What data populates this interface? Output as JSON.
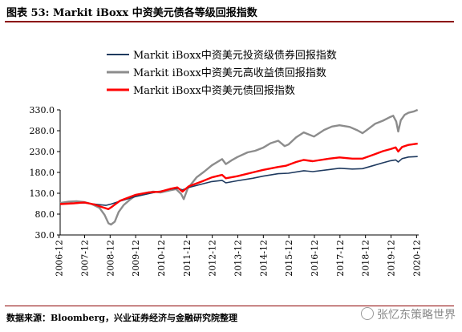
{
  "figure": {
    "caption": "图表 53:  Markit iBoxx 中资美元债各等级回报指数",
    "source": "数据来源：Bloomberg，兴业证券经济与金融研究院整理",
    "watermark": "张忆东策略世界"
  },
  "chart_data": {
    "type": "line",
    "title": "",
    "xlabel": "",
    "ylabel": "",
    "ylim": [
      30,
      330
    ],
    "yticks": [
      "330.0",
      "280.0",
      "230.0",
      "180.0",
      "130.0",
      "80.0",
      "30.0"
    ],
    "xlim": [
      2006.96,
      2021.0
    ],
    "xticks": [
      "2006-12",
      "2007-12",
      "2008-12",
      "2009-12",
      "2010-12",
      "2011-12",
      "2012-12",
      "2013-12",
      "2014-12",
      "2015-12",
      "2016-12",
      "2017-12",
      "2018-12",
      "2019-12",
      "2020-12"
    ],
    "grid": false,
    "legend_position": "top-center",
    "series": [
      {
        "name": "Markit iBoxx中资美元投资级债券回报指数",
        "color": "#1f3a5f",
        "x": [
          2006.96,
          2007.5,
          2007.9,
          2008.3,
          2008.75,
          2008.95,
          2009.3,
          2009.9,
          2010.5,
          2010.9,
          2011.3,
          2011.55,
          2011.75,
          2012.0,
          2012.5,
          2012.9,
          2013.3,
          2013.45,
          2013.9,
          2014.5,
          2014.9,
          2015.5,
          2015.9,
          2016.5,
          2016.85,
          2017.5,
          2017.9,
          2018.4,
          2018.8,
          2019.2,
          2019.6,
          2019.9,
          2020.1,
          2020.2,
          2020.35,
          2020.6,
          2020.96
        ],
        "y": [
          104,
          106,
          107,
          104,
          101,
          104,
          111,
          122,
          130,
          135,
          140,
          142,
          138,
          144,
          152,
          158,
          161,
          155,
          160,
          166,
          171,
          177,
          178,
          184,
          182,
          187,
          190,
          188,
          189,
          196,
          203,
          208,
          210,
          205,
          213,
          217,
          218
        ]
      },
      {
        "name": "Markit iBoxx中资美元高收益债回报指数",
        "color": "#8c8c8c",
        "x": [
          2006.96,
          2007.3,
          2007.6,
          2007.9,
          2008.2,
          2008.5,
          2008.7,
          2008.85,
          2008.95,
          2009.1,
          2009.25,
          2009.45,
          2009.7,
          2009.9,
          2010.3,
          2010.6,
          2010.9,
          2011.25,
          2011.5,
          2011.7,
          2011.8,
          2011.95,
          2012.3,
          2012.6,
          2012.9,
          2013.3,
          2013.45,
          2013.7,
          2013.9,
          2014.3,
          2014.6,
          2014.9,
          2015.2,
          2015.5,
          2015.75,
          2015.9,
          2016.2,
          2016.5,
          2016.9,
          2017.3,
          2017.6,
          2017.9,
          2018.3,
          2018.6,
          2018.8,
          2019.0,
          2019.3,
          2019.6,
          2019.85,
          2020.0,
          2020.12,
          2020.2,
          2020.3,
          2020.45,
          2020.6,
          2020.8,
          2020.96
        ],
        "y": [
          107,
          110,
          111,
          109,
          104,
          95,
          78,
          58,
          55,
          62,
          85,
          102,
          115,
          124,
          130,
          134,
          132,
          137,
          140,
          128,
          116,
          141,
          168,
          182,
          197,
          212,
          200,
          210,
          217,
          228,
          232,
          239,
          250,
          256,
          243,
          247,
          264,
          276,
          266,
          282,
          290,
          293,
          289,
          281,
          274,
          283,
          297,
          304,
          312,
          316,
          302,
          278,
          305,
          318,
          323,
          326,
          330
        ]
      },
      {
        "name": "Markit iBoxx中资美元债回报指数",
        "color": "#ff0000",
        "x": [
          2006.96,
          2007.5,
          2007.9,
          2008.3,
          2008.6,
          2008.85,
          2009.0,
          2009.3,
          2009.9,
          2010.4,
          2010.9,
          2011.3,
          2011.55,
          2011.75,
          2012.0,
          2012.5,
          2012.9,
          2013.3,
          2013.45,
          2013.9,
          2014.5,
          2014.9,
          2015.5,
          2015.8,
          2016.2,
          2016.5,
          2016.85,
          2017.5,
          2017.9,
          2018.4,
          2018.8,
          2019.2,
          2019.6,
          2019.9,
          2020.1,
          2020.2,
          2020.35,
          2020.6,
          2020.96
        ],
        "y": [
          104,
          106,
          108,
          103,
          97,
          92,
          98,
          112,
          126,
          132,
          134,
          141,
          144,
          134,
          147,
          158,
          168,
          174,
          166,
          171,
          180,
          186,
          193,
          196,
          205,
          210,
          207,
          213,
          216,
          213,
          213,
          222,
          231,
          236,
          240,
          230,
          241,
          246,
          249
        ]
      }
    ]
  }
}
